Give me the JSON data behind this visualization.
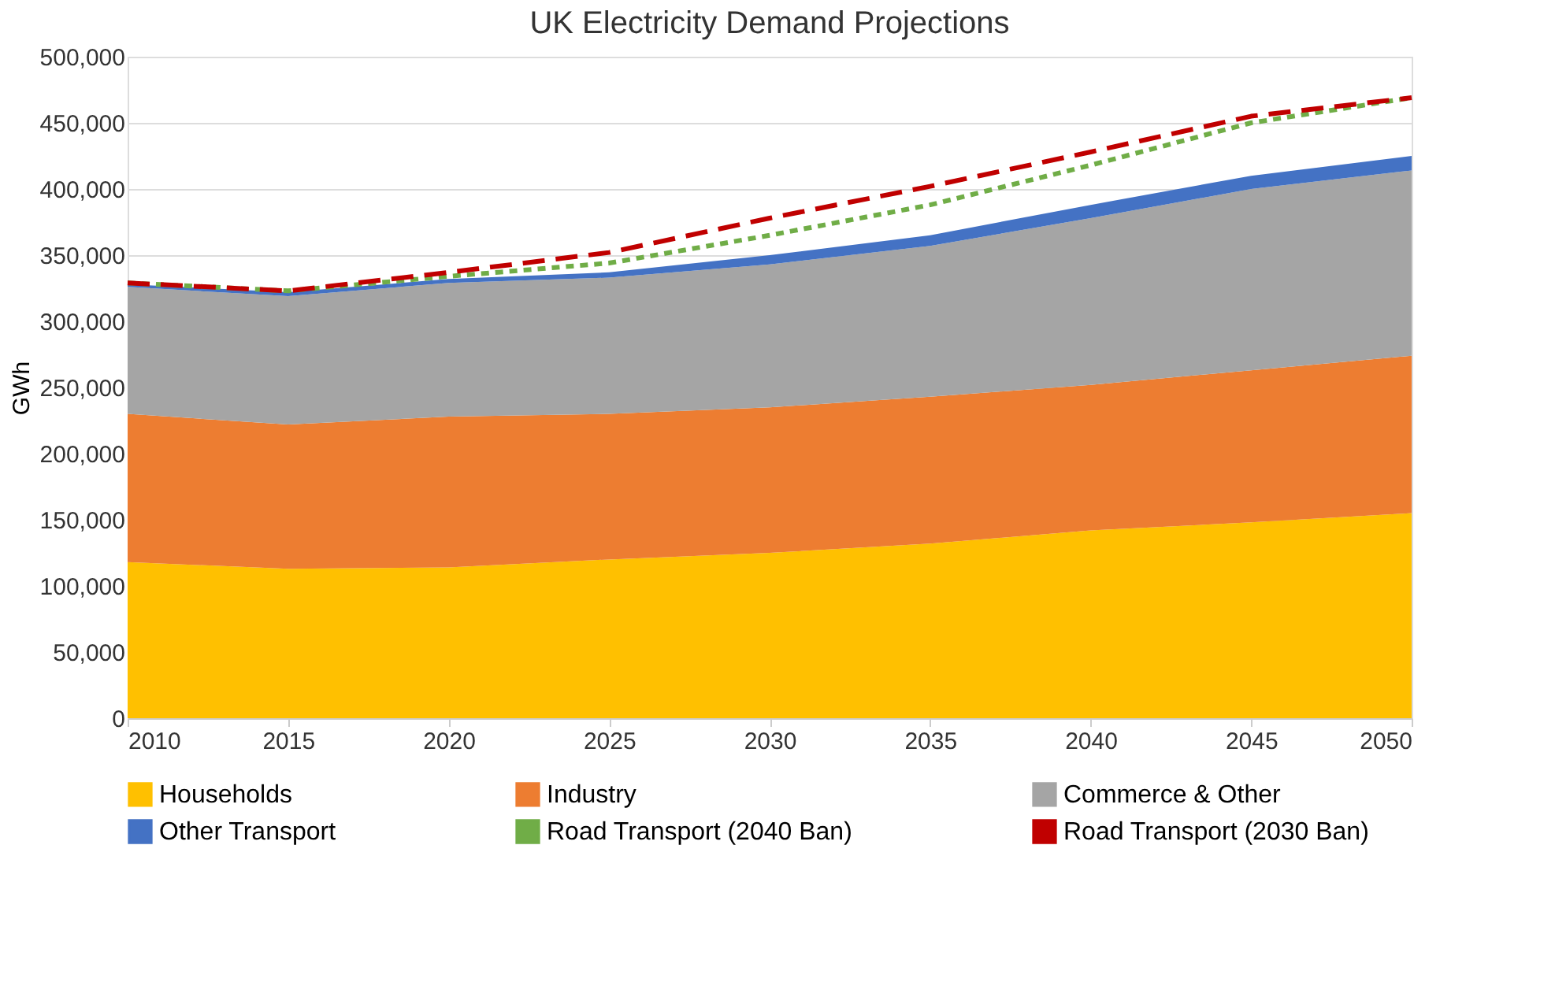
{
  "chart_data": {
    "type": "area",
    "title": "UK Electricity Demand Projections",
    "ylabel": "GWh",
    "x": [
      2010,
      2015,
      2020,
      2025,
      2030,
      2035,
      2040,
      2045,
      2050
    ],
    "xlim": [
      2010,
      2050
    ],
    "xticks": [
      2010,
      2015,
      2020,
      2025,
      2030,
      2035,
      2040,
      2045,
      2050
    ],
    "ylim": [
      0,
      500000
    ],
    "yticks": [
      0,
      {
        "value": 50000,
        "label": "50,000"
      },
      {
        "value": 100000,
        "label": "100,000"
      },
      {
        "value": 150000,
        "label": "150,000"
      },
      {
        "value": 200000,
        "label": "200,000"
      },
      {
        "value": 250000,
        "label": "250,000"
      },
      {
        "value": 300000,
        "label": "300,000"
      },
      {
        "value": 350000,
        "label": "350,000"
      },
      {
        "value": 400000,
        "label": "400,000"
      },
      {
        "value": 450000,
        "label": "450,000"
      },
      {
        "value": 500000,
        "label": "500,000"
      }
    ],
    "stacked": true,
    "grid": "y",
    "legend": "bottom",
    "series": [
      {
        "name": "Households",
        "color": "#ffc000",
        "values": [
          118000,
          113000,
          114000,
          120000,
          125000,
          132000,
          142000,
          148000,
          155000
        ]
      },
      {
        "name": "Industry",
        "color": "#ed7d31",
        "values": [
          112000,
          109000,
          114000,
          110000,
          110000,
          111000,
          110000,
          115000,
          119000
        ]
      },
      {
        "name": "Commerce & Other",
        "color": "#a5a5a5",
        "values": [
          96000,
          97000,
          101000,
          103000,
          108000,
          114000,
          126000,
          137000,
          140000
        ]
      },
      {
        "name": "Other Transport",
        "color": "#4472c4",
        "values": [
          2000,
          3000,
          3000,
          4000,
          7000,
          8000,
          10000,
          10000,
          11000
        ]
      },
      {
        "name": "Road Transport (2040 Ban)",
        "color": "#70ad47",
        "type": "line",
        "line_style": "dotted",
        "values": [
          329000,
          323000,
          334000,
          344000,
          365000,
          388000,
          418000,
          450000,
          469000
        ]
      },
      {
        "name": "Road Transport (2030 Ban)",
        "color": "#c00000",
        "type": "line",
        "line_style": "dashed",
        "values": [
          329000,
          323000,
          337000,
          352000,
          378000,
          402000,
          428000,
          455000,
          469000
        ]
      }
    ]
  }
}
